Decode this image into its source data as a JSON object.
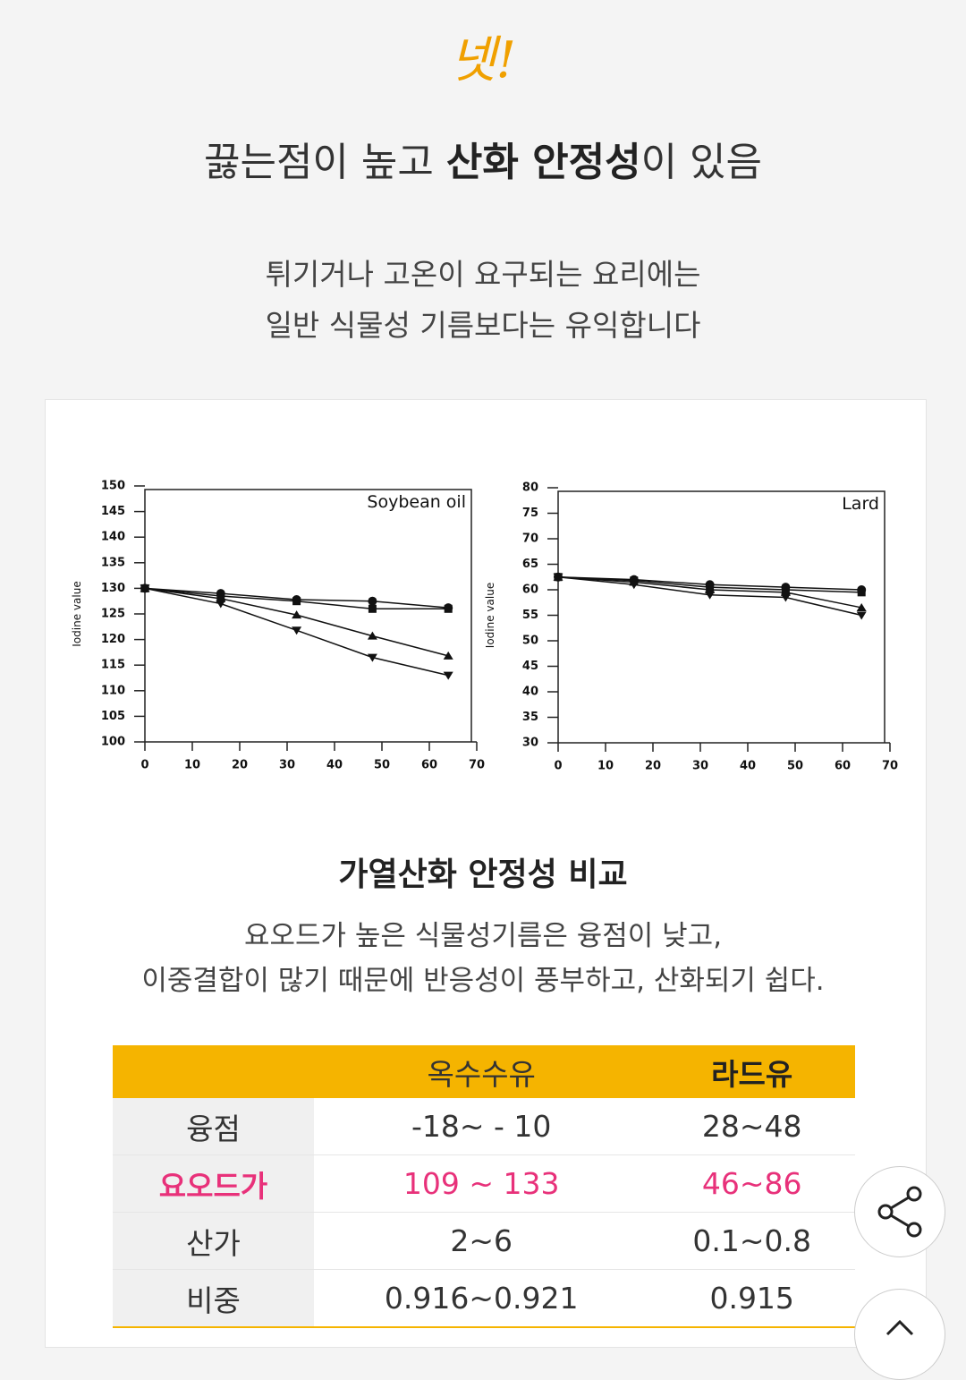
{
  "header": {
    "mark": "넷!",
    "title_parts": [
      "끓는점이 높고 ",
      "산화 안정성",
      "이 있음"
    ],
    "lines": [
      "튀기거나 고온이 요구되는 요리에는",
      "일반 식물성 기름보다는 유익합니다"
    ]
  },
  "chart_data": [
    {
      "type": "line",
      "title": "Soybean oil",
      "y_label": "Iodine value",
      "x": [
        0,
        16,
        32,
        48,
        64
      ],
      "xlim": [
        0,
        70
      ],
      "xticks": [
        0,
        10,
        20,
        30,
        40,
        50,
        60,
        70
      ],
      "ylim": [
        100,
        150
      ],
      "yticks": [
        100,
        105,
        110,
        115,
        120,
        125,
        130,
        135,
        140,
        145,
        150
      ],
      "series": [
        {
          "marker": "circle",
          "color": "#111111",
          "values": [
            130,
            129,
            127.8,
            127.5,
            126.2
          ]
        },
        {
          "marker": "square",
          "color": "#111111",
          "values": [
            130,
            128.5,
            127.5,
            126,
            126
          ]
        },
        {
          "marker": "triangle-up",
          "color": "#111111",
          "values": [
            130,
            128,
            124.8,
            120.7,
            116.8
          ]
        },
        {
          "marker": "triangle-down",
          "color": "#111111",
          "values": [
            130,
            127,
            121.8,
            116.5,
            113
          ]
        }
      ]
    },
    {
      "type": "line",
      "title": "Lard",
      "y_label": "Iodine value",
      "x": [
        0,
        16,
        32,
        48,
        64
      ],
      "xlim": [
        0,
        70
      ],
      "xticks": [
        0,
        10,
        20,
        30,
        40,
        50,
        60,
        70
      ],
      "ylim": [
        30,
        80
      ],
      "yticks": [
        30,
        35,
        40,
        45,
        50,
        55,
        60,
        65,
        70,
        75,
        80
      ],
      "series": [
        {
          "marker": "circle",
          "color": "#111111",
          "values": [
            62.5,
            62,
            61,
            60.5,
            60
          ]
        },
        {
          "marker": "square",
          "color": "#111111",
          "values": [
            62.5,
            61.8,
            60.5,
            60,
            59.5
          ]
        },
        {
          "marker": "triangle-up",
          "color": "#111111",
          "values": [
            62.5,
            61.5,
            60,
            59.5,
            56.5
          ]
        },
        {
          "marker": "triangle-down",
          "color": "#111111",
          "values": [
            62.5,
            61,
            59,
            58.5,
            55
          ]
        }
      ]
    }
  ],
  "caption": {
    "title": "가열산화 안정성 비교",
    "lines": [
      "요오드가 높은 식물성기름은 융점이 낮고,",
      "이중결합이 많기 때문에 반응성이 풍부하고, 산화되기 쉽다."
    ]
  },
  "table": {
    "header": [
      "옥수수유",
      "라드유"
    ],
    "rows": [
      [
        "융점",
        "-18~ - 10",
        "28~48"
      ],
      [
        "요오드가",
        "109 ~ 133",
        "46~86"
      ],
      [
        "산가",
        "2~6",
        "0.1~0.8"
      ],
      [
        "비중",
        "0.916~0.921",
        "0.915"
      ]
    ]
  }
}
